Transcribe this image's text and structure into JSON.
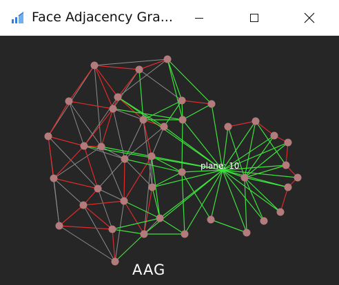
{
  "window": {
    "title": "Face Adjacency Gra...",
    "controls": [
      "minimize",
      "maximize",
      "close"
    ],
    "icon": "app-chart-icon"
  },
  "graph": {
    "caption": "AAG",
    "highlight_label": "plane: 10",
    "colors": {
      "background": "#262626",
      "node": "#b37b7b",
      "edge_concave": "#e02b2b",
      "edge_convex": "#3fe23f",
      "edge_smooth": "#8c8c8c",
      "label": "#ffffff"
    },
    "edge_types": [
      "concave",
      "convex",
      "smooth"
    ]
  }
}
